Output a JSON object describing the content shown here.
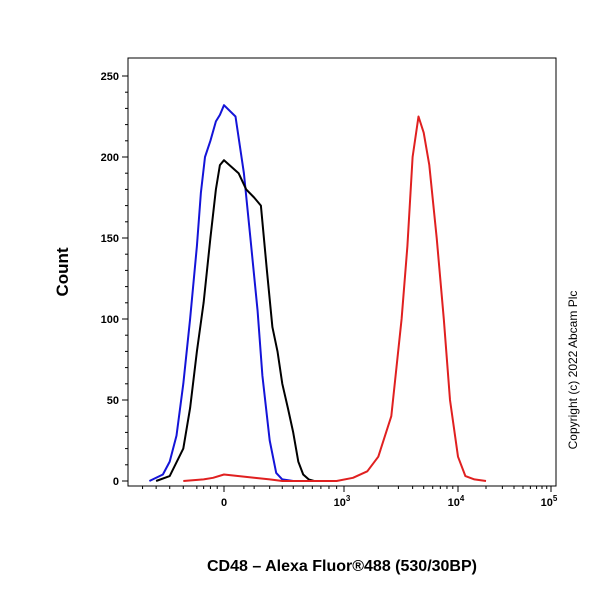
{
  "chart_data": {
    "type": "line",
    "title": "",
    "xlabel": "CD48 – Alexa Fluor®488 (530/30BP)",
    "ylabel": "Count",
    "x_scale": "biexponential",
    "xlim": [
      -700,
      100000
    ],
    "ylim": [
      0,
      260
    ],
    "x_ticks": [
      {
        "base": "0",
        "exp": ""
      },
      {
        "base": "10",
        "exp": "3"
      },
      {
        "base": "10",
        "exp": "4"
      },
      {
        "base": "10",
        "exp": "5"
      }
    ],
    "y_ticks": [
      "0",
      "50",
      "100",
      "150",
      "200",
      "250"
    ],
    "grid": false,
    "legend": "none",
    "series": [
      {
        "color": "#1414d8",
        "x": [
          -550,
          -450,
          -400,
          -350,
          -300,
          -250,
          -200,
          -170,
          -140,
          -100,
          -60,
          -30,
          0,
          20,
          50,
          80,
          120,
          150,
          200,
          250,
          300,
          400
        ],
        "y": [
          0,
          4,
          12,
          28,
          60,
          100,
          145,
          178,
          200,
          210,
          222,
          226,
          232,
          225,
          190,
          150,
          105,
          65,
          25,
          5,
          1,
          0
        ]
      },
      {
        "color": "#000000",
        "x": [
          -500,
          -400,
          -300,
          -250,
          -200,
          -150,
          -100,
          -60,
          -30,
          0,
          30,
          60,
          100,
          140,
          180,
          220,
          260,
          300,
          350,
          400,
          450,
          500,
          560,
          620
        ],
        "y": [
          0,
          3,
          20,
          45,
          80,
          110,
          150,
          180,
          195,
          198,
          190,
          180,
          175,
          170,
          130,
          95,
          80,
          60,
          45,
          30,
          12,
          4,
          1,
          0
        ]
      },
      {
        "color": "#e02020",
        "x": [
          -300,
          -150,
          -80,
          0,
          100,
          200,
          300,
          400,
          700,
          900,
          1200,
          1600,
          2000,
          2600,
          3200,
          3600,
          4000,
          4500,
          5000,
          5600,
          6500,
          7500,
          8500,
          10000,
          12000,
          15000,
          20000
        ],
        "y": [
          0,
          1,
          2,
          4,
          2,
          1,
          0,
          0,
          0,
          0,
          2,
          6,
          15,
          40,
          100,
          145,
          200,
          225,
          215,
          195,
          150,
          100,
          50,
          15,
          3,
          1,
          0
        ]
      }
    ]
  },
  "copyright": "Copyright (c) 2022 Abcam Plc"
}
